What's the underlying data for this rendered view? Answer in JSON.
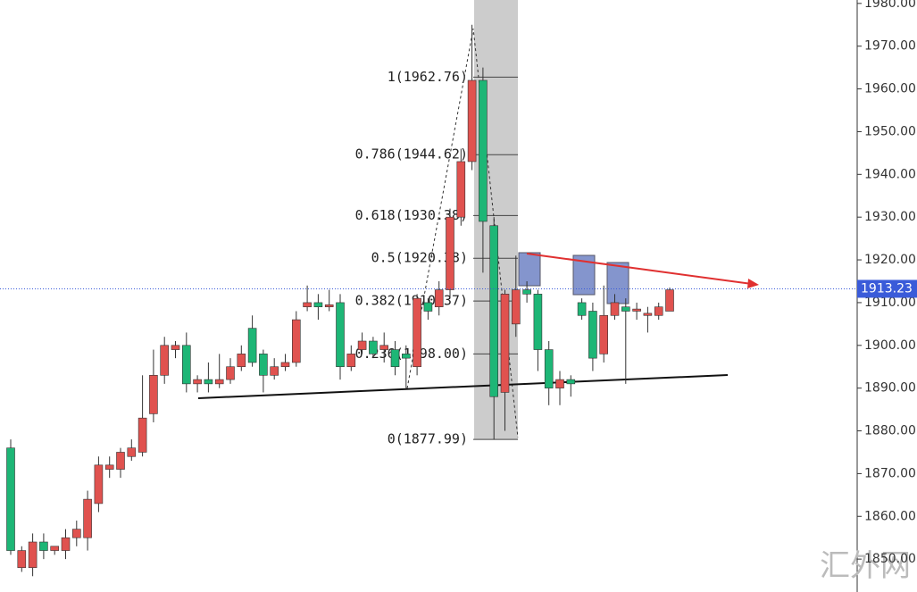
{
  "chart_data": {
    "type": "candlestick",
    "up_color": "#e0524f",
    "down_color": "#1db676",
    "open": [
      1876,
      1848,
      1848,
      1854,
      1852,
      1852,
      1855,
      1855,
      1863,
      1871,
      1871,
      1874,
      1875,
      1884,
      1893,
      1899,
      1900,
      1891,
      1892,
      1891,
      1892,
      1895,
      1904,
      1898,
      1893,
      1895,
      1896,
      1909,
      1910,
      1909,
      1910,
      1895,
      1899,
      1901,
      1899,
      1899,
      1898,
      1895,
      1910,
      1909,
      1913,
      1930,
      1943,
      1962,
      1928,
      1889,
      1905,
      1913,
      1912,
      1899,
      1890,
      1892,
      1910,
      1908,
      1898,
      1907,
      1909,
      1908,
      1907,
      1907,
      1908
    ],
    "high": [
      1878,
      1853,
      1856,
      1856,
      1853,
      1857,
      1859,
      1866,
      1874,
      1874,
      1876,
      1878,
      1893,
      1899,
      1902,
      1901,
      1903,
      1893,
      1896,
      1898,
      1897,
      1900,
      1907,
      1899,
      1897,
      1898,
      1908,
      1914,
      1912,
      1913,
      1912,
      1900,
      1903,
      1902,
      1903,
      1901,
      1900,
      1912,
      1911,
      1915,
      1932,
      1946,
      1975,
      1965,
      1930,
      1913,
      1921,
      1915,
      1913,
      1901,
      1894,
      1893,
      1911,
      1910,
      1914,
      1912,
      1911,
      1910,
      1909,
      1910,
      1913.5
    ],
    "low": [
      1851,
      1847,
      1846,
      1850,
      1851,
      1850,
      1853,
      1852,
      1861,
      1869,
      1869,
      1873,
      1874,
      1882,
      1891,
      1897,
      1889,
      1889,
      1889,
      1890,
      1891,
      1894,
      1895,
      1889,
      1892,
      1894,
      1895,
      1908,
      1906,
      1908,
      1892,
      1894,
      1898,
      1897,
      1896,
      1893,
      1890,
      1893,
      1906,
      1907,
      1911,
      1928,
      1941,
      1917,
      1878,
      1880,
      1902,
      1910,
      1894,
      1886,
      1886,
      1888,
      1906,
      1894,
      1896,
      1906,
      1891,
      1906,
      1903,
      1906,
      1908
    ],
    "close": [
      1852,
      1852,
      1854,
      1852,
      1853,
      1855,
      1857,
      1864,
      1872,
      1872,
      1875,
      1876,
      1883,
      1893,
      1900,
      1900,
      1891,
      1892,
      1891,
      1892,
      1895,
      1898,
      1896,
      1893,
      1895,
      1896,
      1906,
      1910,
      1909,
      1909.5,
      1895,
      1898,
      1901,
      1898,
      1900,
      1895,
      1897,
      1911,
      1908,
      1913,
      1930,
      1943,
      1962,
      1929,
      1888,
      1912,
      1913,
      1912,
      1899,
      1890,
      1892,
      1891,
      1907,
      1897,
      1907,
      1910,
      1908,
      1908.5,
      1907.5,
      1909,
      1913
    ],
    "ylim": [
      1842.3,
      1980.8
    ],
    "yticks": [
      {
        "value": 1850,
        "label": "1850.00"
      },
      {
        "value": 1860,
        "label": "1860.00"
      },
      {
        "value": 1870,
        "label": "1870.00"
      },
      {
        "value": 1880,
        "label": "1880.00"
      },
      {
        "value": 1890,
        "label": "1890.00"
      },
      {
        "value": 1900,
        "label": "1900.00"
      },
      {
        "value": 1910,
        "label": "1910.00"
      },
      {
        "value": 1920,
        "label": "1920.00"
      },
      {
        "value": 1930,
        "label": "1930.00"
      },
      {
        "value": 1940,
        "label": "1940.00"
      },
      {
        "value": 1950,
        "label": "1950.00"
      },
      {
        "value": 1960,
        "label": "1960.00"
      },
      {
        "value": 1970,
        "label": "1970.00"
      },
      {
        "value": 1980,
        "label": "1980.00"
      }
    ],
    "fib_levels": [
      {
        "value": 1962.76,
        "label": "1(1962.76)"
      },
      {
        "value": 1944.62,
        "label": "0.786(1944.62)"
      },
      {
        "value": 1930.38,
        "label": "0.618(1930.38)"
      },
      {
        "value": 1920.38,
        "label": "0.5(1920.38)"
      },
      {
        "value": 1910.37,
        "label": "0.382(1910.37)"
      },
      {
        "value": 1898.0,
        "label": "0.236(1898.00)"
      },
      {
        "value": 1877.99,
        "label": "0(1877.99)"
      }
    ],
    "current_price": 1913.23,
    "watermark": "汇外网"
  }
}
